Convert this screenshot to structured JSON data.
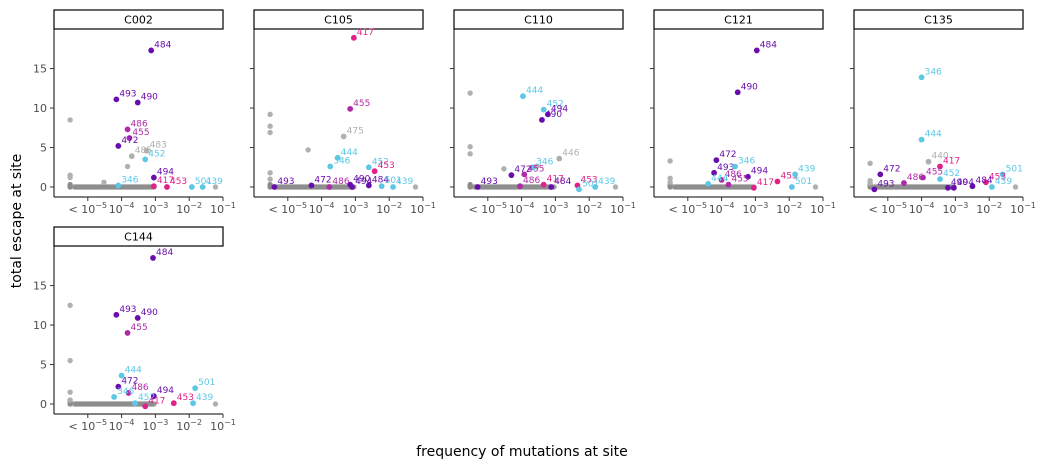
{
  "colors": {
    "gray": "#b0b0b0",
    "dark_gray": "#8c8c8c",
    "purple": "#6a0dad",
    "magenta": "#b02aa8",
    "pink": "#e0218a",
    "cyan": "#5bc8e6"
  },
  "chart_data": {
    "type": "scatter",
    "xlabel": "frequency of mutations at site",
    "ylabel": "total escape at site",
    "x_scale": "log",
    "xlim": [
      1e-06,
      0.1
    ],
    "ylim": [
      0,
      19
    ],
    "x_ticks": [
      {
        "value": 1e-05,
        "base": "< 10",
        "exp": "−5"
      },
      {
        "value": 0.0001,
        "base": "10",
        "exp": "−4"
      },
      {
        "value": 0.001,
        "base": "10",
        "exp": "−3"
      },
      {
        "value": 0.01,
        "base": "10",
        "exp": "−2"
      },
      {
        "value": 0.1,
        "base": "10",
        "exp": "−1"
      }
    ],
    "y_ticks": [
      0,
      5,
      10,
      15
    ],
    "facets": [
      {
        "title": "C002",
        "labeled_points": [
          {
            "site": "484",
            "x": 0.00075,
            "y": 17.3,
            "color": "purple"
          },
          {
            "site": "493",
            "x": 7e-05,
            "y": 11.1,
            "color": "purple"
          },
          {
            "site": "490",
            "x": 0.0003,
            "y": 10.7,
            "color": "purple"
          },
          {
            "site": "486",
            "x": 0.00015,
            "y": 7.3,
            "color": "magenta"
          },
          {
            "site": "455",
            "x": 0.00017,
            "y": 6.2,
            "color": "magenta"
          },
          {
            "site": "472",
            "x": 8e-05,
            "y": 5.2,
            "color": "purple"
          },
          {
            "site": "483",
            "x": 0.00055,
            "y": 4.6,
            "color": "gray"
          },
          {
            "site": "485",
            "x": 0.0002,
            "y": 3.9,
            "color": "gray"
          },
          {
            "site": "452",
            "x": 0.0005,
            "y": 3.5,
            "color": "cyan"
          },
          {
            "site": "494",
            "x": 0.0009,
            "y": 1.2,
            "color": "purple"
          },
          {
            "site": "346",
            "x": 8e-05,
            "y": 0.2,
            "color": "cyan"
          },
          {
            "site": "417",
            "x": 0.0009,
            "y": 0.1,
            "color": "pink"
          },
          {
            "site": "453",
            "x": 0.0022,
            "y": 0.0,
            "color": "pink"
          },
          {
            "site": "501",
            "x": 0.012,
            "y": 0.0,
            "color": "cyan"
          },
          {
            "site": "439",
            "x": 0.025,
            "y": 0.0,
            "color": "cyan"
          }
        ],
        "other_points": [
          {
            "x": 3e-06,
            "y": 8.5
          },
          {
            "x": 3e-06,
            "y": 1.5
          },
          {
            "x": 3e-06,
            "y": 1.2
          },
          {
            "x": 0.00015,
            "y": 2.6
          },
          {
            "x": 3e-05,
            "y": 0.6
          },
          {
            "x": 0.06,
            "y": 0.0
          }
        ]
      },
      {
        "title": "C105",
        "labeled_points": [
          {
            "site": "417",
            "x": 0.0009,
            "y": 18.9,
            "color": "pink"
          },
          {
            "site": "455",
            "x": 0.0007,
            "y": 9.9,
            "color": "magenta"
          },
          {
            "site": "475",
            "x": 0.00045,
            "y": 6.4,
            "color": "gray"
          },
          {
            "site": "444",
            "x": 0.0003,
            "y": 3.7,
            "color": "cyan"
          },
          {
            "site": "346",
            "x": 0.00018,
            "y": 2.6,
            "color": "cyan"
          },
          {
            "site": "452",
            "x": 0.0025,
            "y": 2.5,
            "color": "cyan"
          },
          {
            "site": "453",
            "x": 0.0037,
            "y": 2.0,
            "color": "pink"
          },
          {
            "site": "472",
            "x": 5e-05,
            "y": 0.2,
            "color": "purple"
          },
          {
            "site": "490",
            "x": 0.0007,
            "y": 0.3,
            "color": "purple"
          },
          {
            "site": "484",
            "x": 0.0025,
            "y": 0.2,
            "color": "purple"
          },
          {
            "site": "501",
            "x": 0.006,
            "y": 0.1,
            "color": "cyan"
          },
          {
            "site": "439",
            "x": 0.013,
            "y": 0.0,
            "color": "cyan"
          },
          {
            "site": "493",
            "x": 4e-06,
            "y": 0.0,
            "color": "purple"
          },
          {
            "site": "486",
            "x": 0.00017,
            "y": 0.0,
            "color": "magenta"
          },
          {
            "site": "494",
            "x": 0.0008,
            "y": 0.0,
            "color": "purple"
          }
        ],
        "other_points": [
          {
            "x": 3e-06,
            "y": 9.2
          },
          {
            "x": 3e-06,
            "y": 7.7
          },
          {
            "x": 3e-06,
            "y": 6.9
          },
          {
            "x": 4e-05,
            "y": 4.7
          },
          {
            "x": 3e-06,
            "y": 1.8
          },
          {
            "x": 3e-06,
            "y": 1.0
          },
          {
            "x": 0.06,
            "y": 0.0
          }
        ]
      },
      {
        "title": "C110",
        "labeled_points": [
          {
            "site": "444",
            "x": 0.00011,
            "y": 11.5,
            "color": "cyan"
          },
          {
            "site": "452",
            "x": 0.00045,
            "y": 9.8,
            "color": "cyan"
          },
          {
            "site": "494",
            "x": 0.0006,
            "y": 9.2,
            "color": "purple"
          },
          {
            "site": "490",
            "x": 0.0004,
            "y": 8.5,
            "color": "purple"
          },
          {
            "site": "446",
            "x": 0.0013,
            "y": 3.6,
            "color": "gray"
          },
          {
            "site": "346",
            "x": 0.00022,
            "y": 2.5,
            "color": "cyan"
          },
          {
            "site": "472",
            "x": 5e-05,
            "y": 1.5,
            "color": "purple"
          },
          {
            "site": "455",
            "x": 0.00012,
            "y": 1.6,
            "color": "magenta"
          },
          {
            "site": "486",
            "x": 9e-05,
            "y": 0.1,
            "color": "magenta"
          },
          {
            "site": "417",
            "x": 0.00045,
            "y": 0.3,
            "color": "pink"
          },
          {
            "site": "484",
            "x": 0.00075,
            "y": 0.0,
            "color": "purple"
          },
          {
            "site": "453",
            "x": 0.0045,
            "y": 0.2,
            "color": "pink"
          },
          {
            "site": "501",
            "x": 0.005,
            "y": -0.3,
            "color": "cyan"
          },
          {
            "site": "439",
            "x": 0.015,
            "y": 0.0,
            "color": "cyan"
          },
          {
            "site": "493",
            "x": 5e-06,
            "y": 0.0,
            "color": "purple"
          }
        ],
        "other_points": [
          {
            "x": 3e-06,
            "y": 11.9
          },
          {
            "x": 3e-06,
            "y": 5.1
          },
          {
            "x": 3e-06,
            "y": 4.2
          },
          {
            "x": 3e-05,
            "y": 2.3
          },
          {
            "x": 0.00028,
            "y": 2.6
          },
          {
            "x": 0.06,
            "y": 0.0
          }
        ]
      },
      {
        "title": "C121",
        "labeled_points": [
          {
            "site": "484",
            "x": 0.0011,
            "y": 17.3,
            "color": "purple"
          },
          {
            "site": "490",
            "x": 0.0003,
            "y": 12.0,
            "color": "purple"
          },
          {
            "site": "472",
            "x": 7e-05,
            "y": 3.4,
            "color": "purple"
          },
          {
            "site": "493",
            "x": 6e-05,
            "y": 1.8,
            "color": "purple"
          },
          {
            "site": "346",
            "x": 0.00025,
            "y": 2.6,
            "color": "cyan"
          },
          {
            "site": "486",
            "x": 0.0001,
            "y": 0.9,
            "color": "magenta"
          },
          {
            "site": "494",
            "x": 0.0006,
            "y": 1.3,
            "color": "purple"
          },
          {
            "site": "455",
            "x": 0.00016,
            "y": 0.3,
            "color": "magenta"
          },
          {
            "site": "453",
            "x": 0.0045,
            "y": 0.7,
            "color": "pink"
          },
          {
            "site": "439",
            "x": 0.015,
            "y": 1.6,
            "color": "cyan"
          },
          {
            "site": "444",
            "x": 4e-05,
            "y": 0.4,
            "color": "cyan"
          },
          {
            "site": "417",
            "x": 0.0009,
            "y": -0.1,
            "color": "pink"
          },
          {
            "site": "501",
            "x": 0.012,
            "y": 0.0,
            "color": "cyan"
          }
        ],
        "other_points": [
          {
            "x": 3e-06,
            "y": 3.3
          },
          {
            "x": 3e-06,
            "y": 1.1
          },
          {
            "x": 3e-06,
            "y": 0.6
          },
          {
            "x": 0.06,
            "y": 0.0
          }
        ]
      },
      {
        "title": "C135",
        "labeled_points": [
          {
            "site": "346",
            "x": 0.0001,
            "y": 13.9,
            "color": "cyan"
          },
          {
            "site": "444",
            "x": 0.0001,
            "y": 6.0,
            "color": "cyan"
          },
          {
            "site": "440",
            "x": 0.00016,
            "y": 3.2,
            "color": "gray"
          },
          {
            "site": "417",
            "x": 0.00035,
            "y": 2.6,
            "color": "pink"
          },
          {
            "site": "472",
            "x": 6e-06,
            "y": 1.6,
            "color": "purple"
          },
          {
            "site": "455",
            "x": 0.00011,
            "y": 1.2,
            "color": "magenta"
          },
          {
            "site": "452",
            "x": 0.00035,
            "y": 1.0,
            "color": "cyan"
          },
          {
            "site": "486",
            "x": 3e-05,
            "y": 0.5,
            "color": "magenta"
          },
          {
            "site": "501",
            "x": 0.025,
            "y": 1.6,
            "color": "cyan"
          },
          {
            "site": "453",
            "x": 0.008,
            "y": 0.6,
            "color": "pink"
          },
          {
            "site": "484",
            "x": 0.0032,
            "y": 0.1,
            "color": "purple"
          },
          {
            "site": "439",
            "x": 0.012,
            "y": 0.0,
            "color": "cyan"
          },
          {
            "site": "490",
            "x": 0.0006,
            "y": -0.1,
            "color": "purple"
          },
          {
            "site": "494",
            "x": 0.0009,
            "y": -0.1,
            "color": "purple"
          },
          {
            "site": "493",
            "x": 4e-06,
            "y": -0.3,
            "color": "purple"
          }
        ],
        "other_points": [
          {
            "x": 3e-06,
            "y": 3.0
          },
          {
            "x": 3e-06,
            "y": 0.8
          },
          {
            "x": 3e-06,
            "y": 0.5
          },
          {
            "x": 0.06,
            "y": 0.0
          }
        ]
      },
      {
        "title": "C144",
        "labeled_points": [
          {
            "site": "484",
            "x": 0.00085,
            "y": 18.5,
            "color": "purple"
          },
          {
            "site": "493",
            "x": 7e-05,
            "y": 11.3,
            "color": "purple"
          },
          {
            "site": "490",
            "x": 0.0003,
            "y": 10.9,
            "color": "purple"
          },
          {
            "site": "455",
            "x": 0.00015,
            "y": 9.0,
            "color": "magenta"
          },
          {
            "site": "472",
            "x": 8e-05,
            "y": 2.2,
            "color": "purple"
          },
          {
            "site": "444",
            "x": 0.0001,
            "y": 3.6,
            "color": "cyan"
          },
          {
            "site": "486",
            "x": 0.00016,
            "y": 1.4,
            "color": "magenta"
          },
          {
            "site": "494",
            "x": 0.0009,
            "y": 1.0,
            "color": "purple"
          },
          {
            "site": "346",
            "x": 6e-05,
            "y": 0.9,
            "color": "cyan"
          },
          {
            "site": "452",
            "x": 0.00025,
            "y": 0.1,
            "color": "cyan"
          },
          {
            "site": "417",
            "x": 0.0005,
            "y": -0.3,
            "color": "pink"
          },
          {
            "site": "453",
            "x": 0.0035,
            "y": 0.1,
            "color": "pink"
          },
          {
            "site": "501",
            "x": 0.015,
            "y": 2.0,
            "color": "cyan"
          },
          {
            "site": "439",
            "x": 0.013,
            "y": 0.1,
            "color": "cyan"
          }
        ],
        "other_points": [
          {
            "x": 3e-06,
            "y": 12.5
          },
          {
            "x": 3e-06,
            "y": 5.5
          },
          {
            "x": 3e-06,
            "y": 1.5
          },
          {
            "x": 3e-06,
            "y": 0.5
          },
          {
            "x": 0.06,
            "y": 0.0
          }
        ]
      }
    ]
  }
}
